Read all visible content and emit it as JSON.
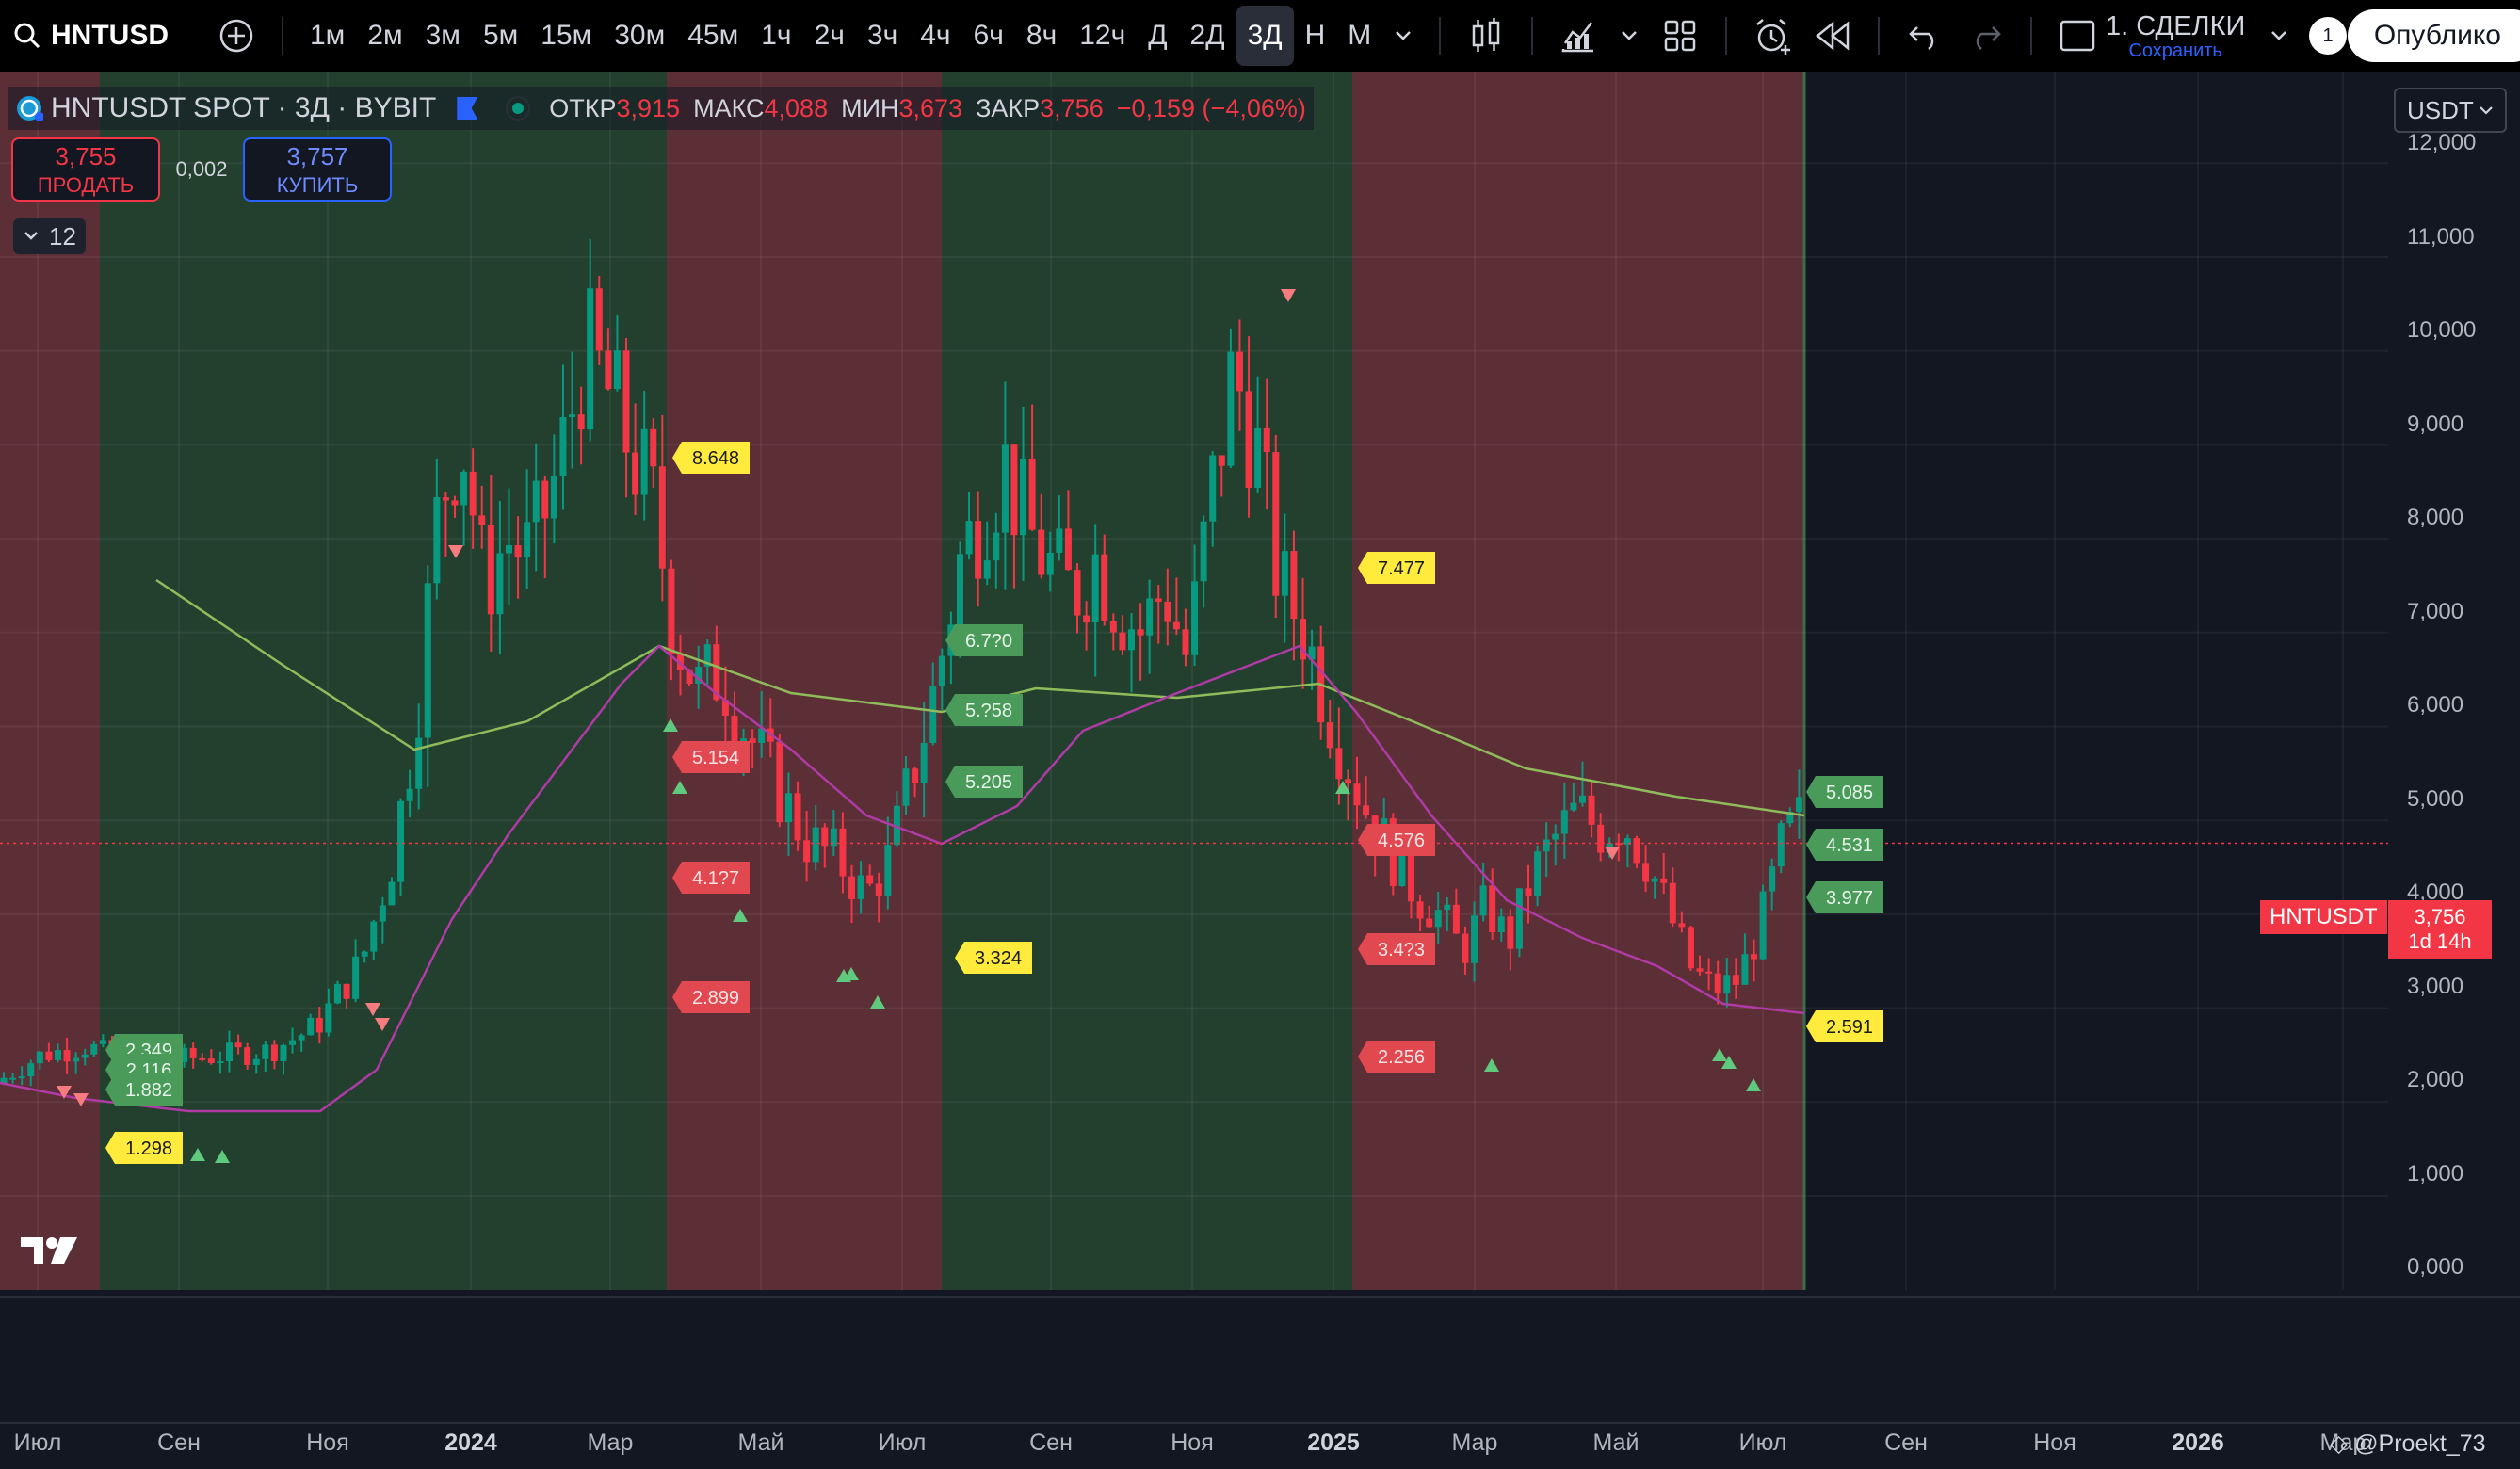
{
  "toolbar": {
    "symbol": "HNTUSD",
    "timeframes": [
      "1м",
      "2м",
      "3м",
      "5м",
      "15м",
      "30м",
      "45м",
      "1ч",
      "2ч",
      "3ч",
      "4ч",
      "6ч",
      "8ч",
      "12ч",
      "Д",
      "2Д",
      "3Д",
      "Н",
      "М"
    ],
    "active_timeframe": "3Д",
    "deals_title": "1. СДЕЛКИ",
    "deals_subtitle": "Сохранить",
    "deals_badge": "1",
    "publish_label": "Опублико"
  },
  "legend": {
    "title": "HNTUSDT SPOT · 3Д · BYBIT",
    "open_label": "ОТКР",
    "open": "3,915",
    "high_label": "МАКС",
    "high": "4,088",
    "low_label": "МИН",
    "low": "3,673",
    "close_label": "ЗАКР",
    "close": "3,756",
    "change": "−0,159 (−4,06%)"
  },
  "trade": {
    "sell_price": "3,755",
    "sell_label": "ПРОДАТЬ",
    "spread": "0,002",
    "buy_price": "3,757",
    "buy_label": "КУПИТЬ"
  },
  "indicators_count": "12",
  "currency": "USDT",
  "price_tag": {
    "symbol": "HNTUSDT",
    "price": "3,756",
    "countdown": "1d 14h"
  },
  "colors": {
    "up": "#089981",
    "down": "#f23645",
    "bull_zone": "#23402f",
    "bear_zone": "#5c2f36",
    "ma_long": "#8fbc5a",
    "ma_short": "#b03aa6",
    "label_yellow": "#ffeb3b"
  },
  "chart_data": {
    "type": "candlestick",
    "y_axis": [
      "12,000",
      "11,000",
      "10,000",
      "9,000",
      "8,000",
      "7,000",
      "6,000",
      "5,000",
      "4,000",
      "3,000",
      "2,000",
      "1,000",
      "0,000"
    ],
    "ylim": [
      0,
      12
    ],
    "x_axis": [
      {
        "label": "Июл",
        "bold": false
      },
      {
        "label": "Сен",
        "bold": false
      },
      {
        "label": "Ноя",
        "bold": false
      },
      {
        "label": "2024",
        "bold": true
      },
      {
        "label": "Мар",
        "bold": false
      },
      {
        "label": "Май",
        "bold": false
      },
      {
        "label": "Июл",
        "bold": false
      },
      {
        "label": "Сен",
        "bold": false
      },
      {
        "label": "Ноя",
        "bold": false
      },
      {
        "label": "2025",
        "bold": true
      },
      {
        "label": "Мар",
        "bold": false
      },
      {
        "label": "Май",
        "bold": false
      },
      {
        "label": "Июл",
        "bold": false
      },
      {
        "label": "Сен",
        "bold": false
      },
      {
        "label": "Ноя",
        "bold": false
      },
      {
        "label": "2026",
        "bold": true
      },
      {
        "label": "Мар",
        "bold": false
      }
    ],
    "zones": [
      {
        "type": "bear",
        "from": "2023-06-01",
        "to": "2023-08-10"
      },
      {
        "type": "bull",
        "from": "2023-08-10",
        "to": "2024-04-15"
      },
      {
        "type": "bear",
        "from": "2024-04-15",
        "to": "2024-06-15"
      },
      {
        "type": "bull",
        "from": "2024-06-15",
        "to": "2024-12-10"
      },
      {
        "type": "bear",
        "from": "2024-12-10",
        "to": "2025-07-25"
      },
      {
        "type": "bull",
        "from": "2025-07-25",
        "to": "2025-07-26"
      }
    ],
    "price_path": [
      [
        0,
        1.2
      ],
      [
        0.3,
        1.5
      ],
      [
        0.6,
        1.6
      ],
      [
        0.9,
        1.4
      ],
      [
        1.2,
        1.45
      ],
      [
        1.5,
        1.5
      ],
      [
        1.8,
        1.55
      ],
      [
        2.1,
        1.8
      ],
      [
        2.4,
        2.5
      ],
      [
        2.6,
        3.6
      ],
      [
        2.75,
        5.0
      ],
      [
        2.9,
        7.3
      ],
      [
        3.05,
        8.2
      ],
      [
        3.2,
        6.5
      ],
      [
        3.35,
        7.0
      ],
      [
        3.5,
        6.8
      ],
      [
        3.7,
        7.8
      ],
      [
        3.85,
        9.0
      ],
      [
        4.0,
        8.6
      ],
      [
        4.15,
        8.0
      ],
      [
        4.3,
        7.4
      ],
      [
        4.45,
        6.0
      ],
      [
        4.6,
        5.4
      ],
      [
        4.75,
        5.6
      ],
      [
        4.9,
        5.0
      ],
      [
        5.1,
        4.4
      ],
      [
        5.3,
        3.8
      ],
      [
        5.5,
        3.6
      ],
      [
        5.7,
        3.2
      ],
      [
        5.85,
        3.6
      ],
      [
        6.0,
        4.5
      ],
      [
        6.15,
        5.4
      ],
      [
        6.3,
        6.7
      ],
      [
        6.45,
        7.3
      ],
      [
        6.6,
        7.8
      ],
      [
        6.75,
        7.1
      ],
      [
        6.9,
        6.7
      ],
      [
        7.05,
        6.4
      ],
      [
        7.2,
        6.8
      ],
      [
        7.35,
        6.3
      ],
      [
        7.5,
        6.0
      ],
      [
        7.65,
        6.5
      ],
      [
        7.8,
        5.7
      ],
      [
        7.95,
        7.4
      ],
      [
        8.1,
        8.8
      ],
      [
        8.25,
        8.0
      ],
      [
        8.4,
        6.5
      ],
      [
        8.55,
        6.1
      ],
      [
        8.7,
        5.3
      ],
      [
        8.85,
        4.6
      ],
      [
        9.0,
        4.0
      ],
      [
        9.15,
        3.6
      ],
      [
        9.3,
        3.2
      ],
      [
        9.45,
        3.0
      ],
      [
        9.6,
        2.6
      ],
      [
        9.75,
        3.1
      ],
      [
        9.9,
        2.7
      ],
      [
        10.05,
        3.4
      ],
      [
        10.2,
        3.8
      ],
      [
        10.35,
        4.1
      ],
      [
        10.5,
        3.9
      ],
      [
        10.65,
        4.0
      ],
      [
        10.8,
        3.6
      ],
      [
        10.95,
        3.0
      ],
      [
        11.1,
        2.4
      ],
      [
        11.25,
        2.2
      ],
      [
        11.4,
        2.3
      ],
      [
        11.55,
        2.9
      ],
      [
        11.7,
        3.8
      ],
      [
        11.8,
        4.0
      ]
    ],
    "labels": [
      {
        "text": "2.349",
        "kind": "green"
      },
      {
        "text": "2.116",
        "kind": "green"
      },
      {
        "text": "1.882",
        "kind": "green"
      },
      {
        "text": "1.298",
        "kind": "yellow"
      },
      {
        "text": "8.648",
        "kind": "yellow"
      },
      {
        "text": "5.154",
        "kind": "red"
      },
      {
        "text": "4.1?7",
        "kind": "red"
      },
      {
        "text": "2.899",
        "kind": "red"
      },
      {
        "text": "6.7?0",
        "kind": "green"
      },
      {
        "text": "5.?58",
        "kind": "green"
      },
      {
        "text": "5.205",
        "kind": "green"
      },
      {
        "text": "3.324",
        "kind": "yellow"
      },
      {
        "text": "7.477",
        "kind": "yellow"
      },
      {
        "text": "4.576",
        "kind": "red"
      },
      {
        "text": "3.4?3",
        "kind": "red"
      },
      {
        "text": "2.256",
        "kind": "red"
      },
      {
        "text": "5.085",
        "kind": "green"
      },
      {
        "text": "4.531",
        "kind": "green"
      },
      {
        "text": "3.977",
        "kind": "green"
      },
      {
        "text": "2.591",
        "kind": "yellow"
      }
    ]
  },
  "watermark": "@Proekt_73"
}
